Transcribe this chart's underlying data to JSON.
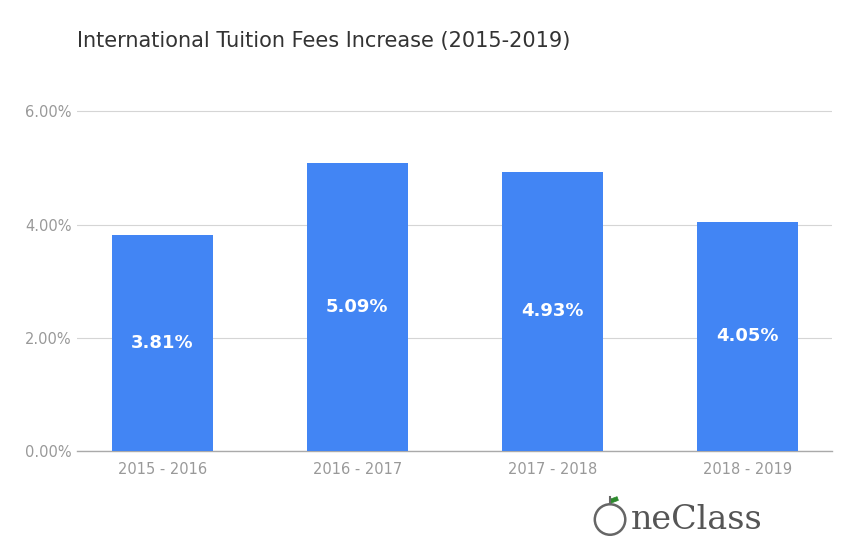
{
  "title": "International Tuition Fees Increase (2015-2019)",
  "categories": [
    "2015 - 2016",
    "2016 - 2017",
    "2017 - 2018",
    "2018 - 2019"
  ],
  "values": [
    3.81,
    5.09,
    4.93,
    4.05
  ],
  "labels": [
    "3.81%",
    "5.09%",
    "4.93%",
    "4.05%"
  ],
  "bar_color": "#4285f4",
  "label_color": "#ffffff",
  "background_color": "#ffffff",
  "title_fontsize": 15,
  "label_fontsize": 13,
  "tick_fontsize": 10.5,
  "yticks": [
    0.0,
    2.0,
    4.0,
    6.0
  ],
  "ytick_labels": [
    "0.00%",
    "2.00%",
    "4.00%",
    "6.00%"
  ],
  "ylim": [
    0,
    6.8
  ],
  "grid_color": "#d5d5d5",
  "axis_color": "#aaaaaa",
  "tick_color": "#999999",
  "title_color": "#333333",
  "watermark_text": "neClass",
  "watermark_fontsize": 24,
  "watermark_color": "#555555"
}
